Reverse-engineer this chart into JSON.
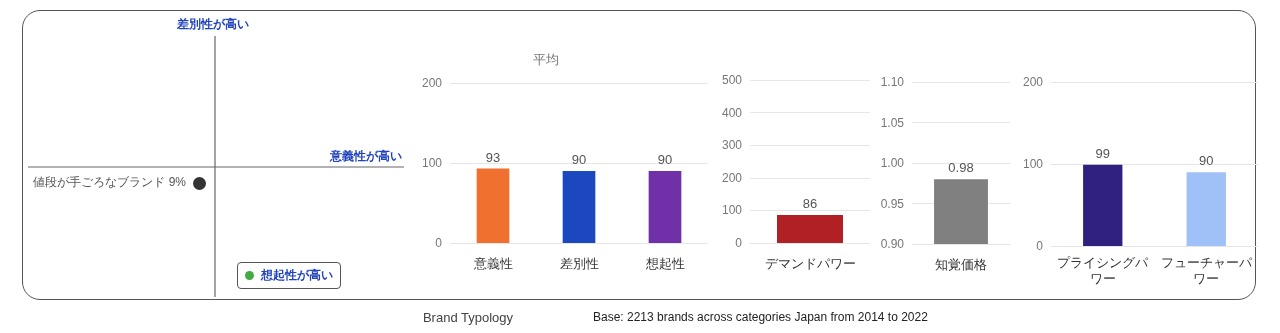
{
  "chart_data": [
    {
      "type": "other",
      "annotations": [
        "差別性が高い",
        "意義性が高い",
        "値段が手ごろなブランド 9%",
        "想起性が高い",
        "Brand Typology",
        "Base: 2213 brands across categories Japan from 2014 to 2022"
      ]
    },
    {
      "type": "bar",
      "title": "平均",
      "categories": [
        "意義性",
        "差別性",
        "想起性"
      ],
      "values": [
        93,
        90,
        90
      ],
      "colors": [
        "#f07030",
        "#1c48bf",
        "#7030a8"
      ],
      "ylim": [
        0,
        200
      ],
      "yticks": [
        0,
        100,
        200
      ],
      "grid": "y",
      "data_labels": true
    },
    {
      "type": "bar",
      "categories": [
        "デマンドパワー"
      ],
      "values": [
        86
      ],
      "colors": [
        "#b02025"
      ],
      "ylim": [
        0,
        500
      ],
      "yticks": [
        0,
        100,
        200,
        300,
        400,
        500
      ],
      "grid": "y",
      "data_labels": true
    },
    {
      "type": "bar",
      "categories": [
        "知覚価格"
      ],
      "values": [
        0.98
      ],
      "colors": [
        "#808080"
      ],
      "ylim": [
        0.9,
        1.1
      ],
      "yticks": [
        {
          "value": 0.9,
          "label": "0.90"
        },
        0.95,
        {
          "value": 1.0,
          "label": "1.00"
        },
        1.05,
        {
          "value": 1.1,
          "label": "1.10"
        }
      ],
      "grid": "y",
      "data_labels": true
    },
    {
      "type": "bar",
      "categories": [
        "プライシングパワー",
        "フューチャーパワー"
      ],
      "values": [
        99,
        90
      ],
      "colors": [
        "#302080",
        "#a0c0f8"
      ],
      "ylim": [
        0,
        200
      ],
      "yticks": [
        0,
        100,
        200
      ],
      "grid": "y",
      "data_labels": true
    }
  ]
}
